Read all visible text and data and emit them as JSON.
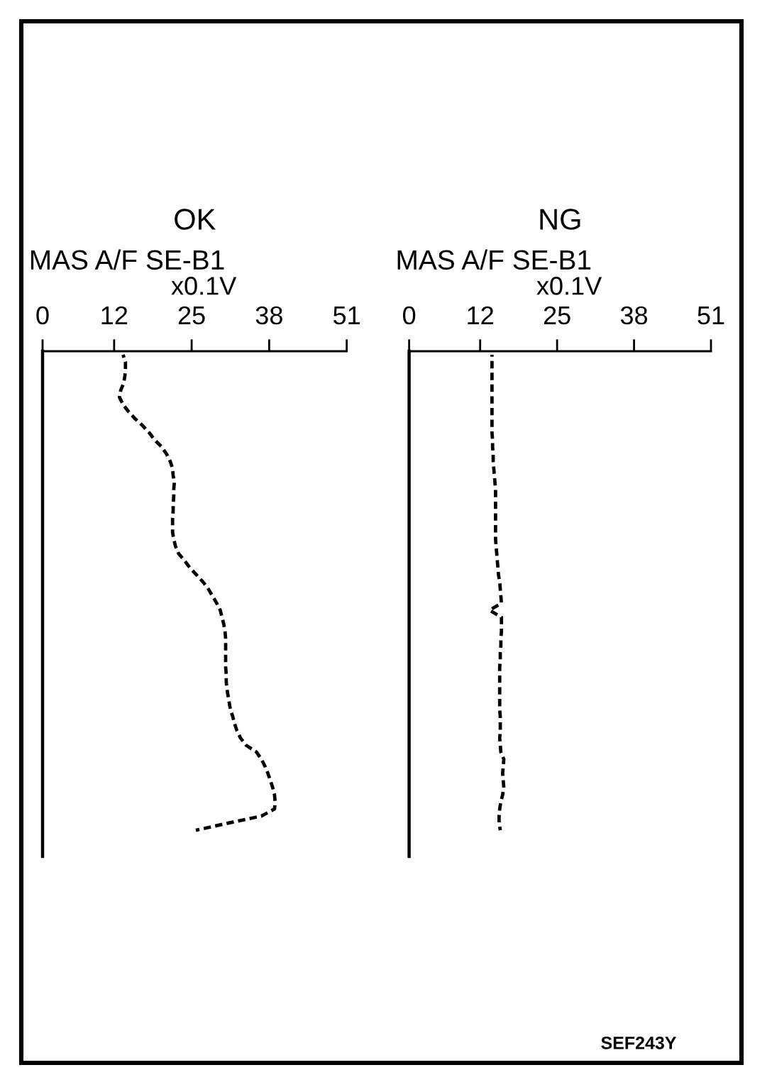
{
  "chart_data": [
    {
      "type": "line",
      "title": "OK",
      "xlabel": "MAS A/F SE-B1",
      "annotations": [
        "x0.1V"
      ],
      "orientation": "horizontal",
      "tick_labels": "x",
      "line_style": "dashed",
      "xlim": [
        0,
        51
      ],
      "xticks": [
        0,
        12,
        25,
        38,
        51
      ],
      "categories": [
        null,
        null,
        null,
        null,
        null,
        null,
        null,
        null,
        null,
        null,
        null,
        null,
        null,
        null,
        null,
        null,
        null,
        null,
        null,
        null,
        null,
        null,
        null,
        null,
        null,
        null,
        null,
        null,
        null,
        null,
        null,
        null,
        null,
        null,
        null,
        null,
        null,
        null,
        null,
        null,
        null,
        null,
        null,
        null,
        null,
        null,
        null,
        null,
        null,
        null,
        null,
        null,
        null,
        null,
        null,
        null,
        null,
        null,
        null,
        null,
        null,
        null,
        null,
        null,
        null,
        null,
        null,
        null
      ],
      "series": [
        {
          "color": "#000000",
          "values": [
            13.5,
            13.9,
            13.9,
            13.8,
            13.6,
            13.1,
            12.9,
            13.5,
            14.4,
            15.5,
            16.8,
            17.9,
            18.8,
            20.0,
            20.8,
            21.4,
            21.8,
            21.9,
            22.1,
            22.0,
            22.0,
            21.9,
            21.9,
            21.8,
            21.8,
            21.8,
            22.0,
            22.3,
            22.8,
            23.8,
            24.7,
            25.8,
            26.9,
            27.8,
            28.5,
            29.2,
            29.8,
            30.1,
            30.4,
            30.6,
            30.7,
            30.7,
            30.7,
            30.7,
            30.7,
            30.8,
            30.8,
            30.9,
            31.1,
            31.3,
            31.5,
            31.9,
            32.2,
            32.6,
            33.2,
            34.1,
            35.9,
            36.7,
            37.3,
            37.8,
            38.2,
            38.6,
            38.9,
            39.0,
            38.9,
            36.7,
            31.1,
            25.7
          ]
        }
      ]
    },
    {
      "type": "line",
      "title": "NG",
      "xlabel": "MAS A/F SE-B1",
      "annotations": [
        "x0.1V",
        "SEF243Y"
      ],
      "orientation": "horizontal",
      "tick_labels": "x",
      "line_style": "dashed",
      "xlim": [
        0,
        51
      ],
      "xticks": [
        0,
        12,
        25,
        38,
        51
      ],
      "categories": [
        null,
        null,
        null,
        null,
        null,
        null,
        null,
        null,
        null,
        null,
        null,
        null,
        null,
        null,
        null,
        null,
        null,
        null,
        null,
        null,
        null,
        null,
        null,
        null,
        null,
        null,
        null,
        null,
        null,
        null,
        null,
        null,
        null,
        null,
        null,
        null,
        null,
        null,
        null,
        null,
        null,
        null,
        null,
        null,
        null,
        null,
        null,
        null,
        null,
        null,
        null,
        null,
        null,
        null,
        null,
        null,
        null,
        null,
        null,
        null,
        null,
        null,
        null,
        null,
        null,
        null,
        null,
        null
      ],
      "series": [
        {
          "color": "#000000",
          "values": [
            14.0,
            14.0,
            14.0,
            14.0,
            14.0,
            14.0,
            14.0,
            14.0,
            14.0,
            14.0,
            14.0,
            14.0,
            14.1,
            14.1,
            14.2,
            14.2,
            14.3,
            14.4,
            14.5,
            14.6,
            14.6,
            14.6,
            14.6,
            14.6,
            14.6,
            14.6,
            14.6,
            14.7,
            14.8,
            14.9,
            15.0,
            15.1,
            15.3,
            15.4,
            15.5,
            15.6,
            13.6,
            15.6,
            15.6,
            15.6,
            15.5,
            15.5,
            15.4,
            15.4,
            15.3,
            15.3,
            15.3,
            15.3,
            15.3,
            15.3,
            15.3,
            15.4,
            15.4,
            15.4,
            15.3,
            15.4,
            15.5,
            16.0,
            15.9,
            15.8,
            15.9,
            16.0,
            15.8,
            15.5,
            15.3,
            15.2,
            15.2,
            15.4
          ]
        }
      ]
    }
  ]
}
